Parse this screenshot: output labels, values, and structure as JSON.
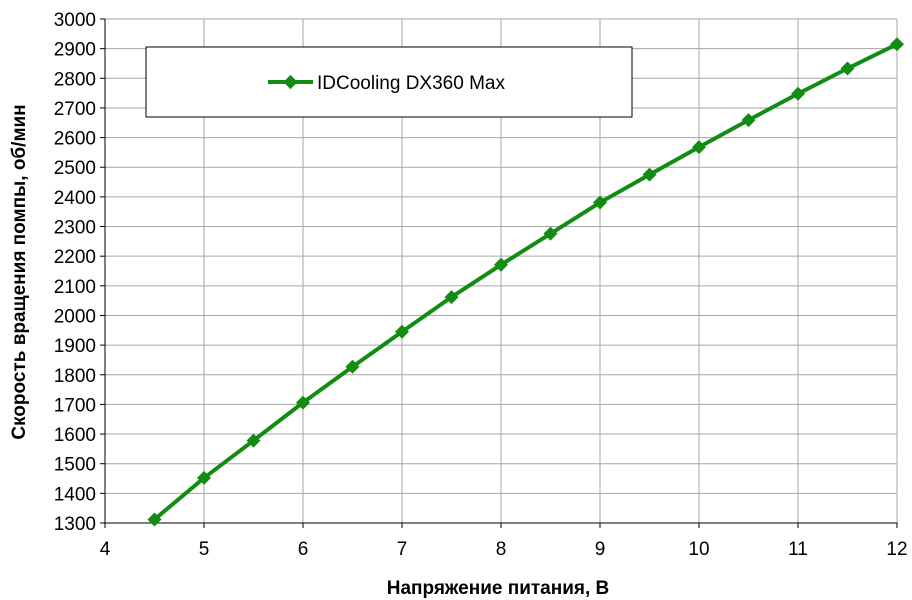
{
  "chart_data": {
    "type": "line",
    "title": "",
    "xlabel": "Напряжение питания, В",
    "ylabel": "Скорость вращения помпы, об/мин",
    "xlim": [
      4,
      12
    ],
    "ylim": [
      1300,
      3000
    ],
    "x_ticks": [
      4,
      5,
      6,
      7,
      8,
      9,
      10,
      11,
      12
    ],
    "y_ticks": [
      1300,
      1400,
      1500,
      1600,
      1700,
      1800,
      1900,
      2000,
      2100,
      2200,
      2300,
      2400,
      2500,
      2600,
      2700,
      2800,
      2900,
      3000
    ],
    "grid": true,
    "legend_position": "top-left",
    "series": [
      {
        "name": "IDCooling DX360 Max",
        "color": "#138C13",
        "marker": "diamond",
        "x": [
          4.5,
          5,
          5.5,
          6,
          6.5,
          7,
          7.5,
          8,
          8.5,
          9,
          9.5,
          10,
          10.5,
          11,
          11.5,
          12
        ],
        "y": [
          1312,
          1452,
          1578,
          1706,
          1827,
          1945,
          2062,
          2171,
          2276,
          2381,
          2475,
          2568,
          2659,
          2748,
          2833,
          2915
        ]
      }
    ]
  }
}
